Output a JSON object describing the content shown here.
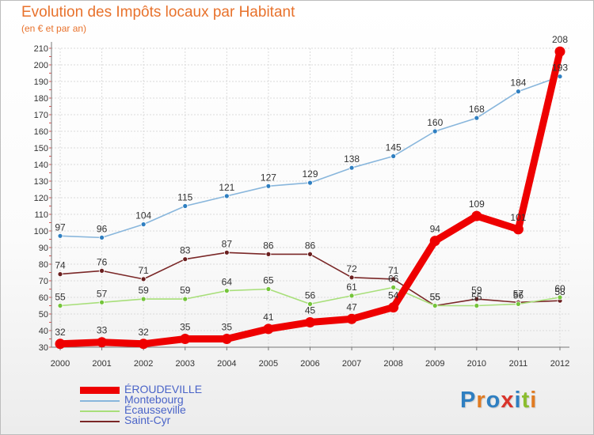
{
  "title": "Evolution des Impôts locaux par Habitant",
  "subtitle": "(en € et par an)",
  "brand": {
    "letters": [
      "P",
      "r",
      "o",
      "x",
      "i",
      "t",
      "i"
    ],
    "colors": [
      "#2f7fc1",
      "#e07b22",
      "#2f7fc1",
      "#d9342b",
      "#2f7fc1",
      "#8bbd2e",
      "#e07b22"
    ]
  },
  "chart_data": {
    "type": "line",
    "title": "Evolution des Impôts locaux par Habitant",
    "subtitle": "(en € et par an)",
    "xlabel": "",
    "ylabel": "",
    "ylim": [
      30,
      210
    ],
    "yticks": [
      "30",
      "40",
      "50",
      "60",
      "70",
      "80",
      "90",
      "100",
      "110",
      "120",
      "130",
      "140",
      "150",
      "160",
      "170",
      "180",
      "190",
      "200",
      "210"
    ],
    "grid": true,
    "categories": [
      "2000",
      "2001",
      "2002",
      "2003",
      "2004",
      "2005",
      "2006",
      "2007",
      "2008",
      "2009",
      "2010",
      "2011",
      "2012"
    ],
    "series": [
      {
        "name": "Montebourg",
        "color": "#88b6dc",
        "marker_color": "#2f7fc1",
        "values": [
          97,
          96,
          104,
          115,
          121,
          127,
          129,
          138,
          145,
          160,
          168,
          184,
          193
        ],
        "labels": [
          "97",
          "96",
          "104",
          "115",
          "121",
          "127",
          "129",
          "138",
          "145",
          "160",
          "168",
          "184",
          "193"
        ]
      },
      {
        "name": "Saint-Cyr",
        "color": "#7a2727",
        "marker_color": "#6a1f1f",
        "values": [
          74,
          76,
          71,
          83,
          87,
          86,
          86,
          72,
          71,
          55,
          59,
          57,
          58
        ],
        "labels": [
          "74",
          "76",
          "71",
          "83",
          "87",
          "86",
          "86",
          "72",
          "71",
          "55",
          "59",
          "57",
          "58"
        ]
      },
      {
        "name": "Écausseville",
        "color": "#a8df7a",
        "marker_color": "#74c43a",
        "values": [
          55,
          57,
          59,
          59,
          64,
          65,
          56,
          61,
          66,
          55,
          55,
          56,
          60
        ],
        "labels": [
          "55",
          "57",
          "59",
          "59",
          "64",
          "65",
          "56",
          "61",
          "66",
          "55",
          "55",
          "56",
          "60"
        ]
      },
      {
        "name": "ÉROUDEVILLE",
        "color": "#ee0000",
        "marker_color": "#ee0000",
        "values": [
          32,
          33,
          32,
          35,
          35,
          41,
          45,
          47,
          54,
          94,
          109,
          101,
          208
        ],
        "labels": [
          "32",
          "33",
          "32",
          "35",
          "35",
          "41",
          "45",
          "47",
          "54",
          "94",
          "109",
          "101",
          "208"
        ]
      }
    ],
    "legend": [
      {
        "name": "ÉROUDEVILLE",
        "color": "#ee0000"
      },
      {
        "name": "Montebourg",
        "color": "#88b6dc"
      },
      {
        "name": "Écausseville",
        "color": "#a8df7a"
      },
      {
        "name": "Saint-Cyr",
        "color": "#7a2727"
      }
    ],
    "legend_position": "bottom-left"
  }
}
